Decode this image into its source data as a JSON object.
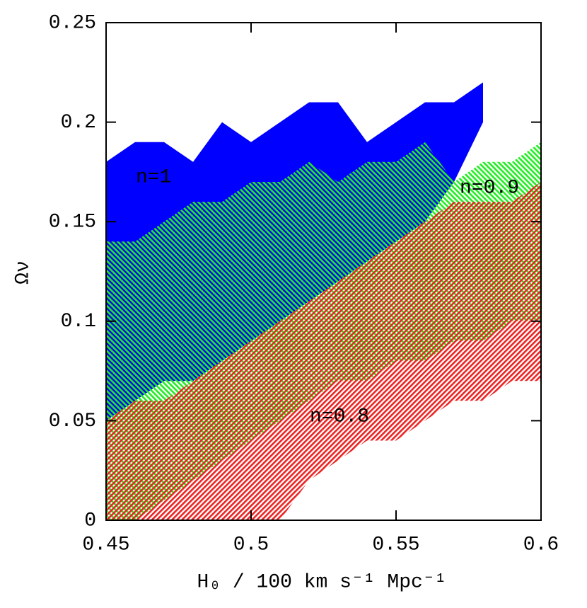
{
  "chart_data": {
    "type": "band",
    "xlabel": "H₀ / 100 km s⁻¹ Mpc⁻¹",
    "ylabel": "Ων",
    "xlim": [
      0.45,
      0.6
    ],
    "ylim": [
      0,
      0.25
    ],
    "xticks": [
      0.45,
      0.5,
      0.55,
      0.6
    ],
    "yticks": [
      0,
      0.05,
      0.1,
      0.15,
      0.2,
      0.25
    ],
    "series": [
      {
        "name": "n=1",
        "color": "#0000ff",
        "hatch": false,
        "x": [
          0.45,
          0.46,
          0.47,
          0.48,
          0.49,
          0.5,
          0.51,
          0.52,
          0.53,
          0.54,
          0.55,
          0.56,
          0.57,
          0.58
        ],
        "lower": [
          0.05,
          0.06,
          0.07,
          0.07,
          0.08,
          0.09,
          0.1,
          0.11,
          0.12,
          0.13,
          0.14,
          0.15,
          0.17,
          0.2
        ],
        "upper": [
          0.18,
          0.19,
          0.19,
          0.18,
          0.2,
          0.19,
          0.2,
          0.21,
          0.21,
          0.19,
          0.2,
          0.21,
          0.21,
          0.22
        ]
      },
      {
        "name": "n=0.9",
        "color": "#22ee22",
        "hatch": true,
        "x": [
          0.45,
          0.46,
          0.47,
          0.48,
          0.49,
          0.5,
          0.51,
          0.52,
          0.53,
          0.54,
          0.55,
          0.56,
          0.57,
          0.58,
          0.59,
          0.6
        ],
        "lower": [
          0,
          0,
          0.01,
          0.02,
          0.03,
          0.04,
          0.05,
          0.06,
          0.07,
          0.07,
          0.08,
          0.08,
          0.09,
          0.09,
          0.1,
          0.1
        ],
        "upper": [
          0.14,
          0.14,
          0.15,
          0.16,
          0.16,
          0.17,
          0.17,
          0.18,
          0.17,
          0.18,
          0.18,
          0.19,
          0.17,
          0.18,
          0.18,
          0.19
        ]
      },
      {
        "name": "n=0.8",
        "color": "#ee2222",
        "hatch": true,
        "x": [
          0.45,
          0.46,
          0.47,
          0.48,
          0.49,
          0.5,
          0.51,
          0.52,
          0.53,
          0.54,
          0.55,
          0.56,
          0.57,
          0.58,
          0.59,
          0.6
        ],
        "lower": [
          0,
          0,
          0,
          0,
          0,
          0,
          0,
          0.02,
          0.03,
          0.04,
          0.04,
          0.05,
          0.06,
          0.06,
          0.07,
          0.07
        ],
        "upper": [
          0.05,
          0.06,
          0.06,
          0.07,
          0.08,
          0.09,
          0.1,
          0.11,
          0.12,
          0.13,
          0.14,
          0.15,
          0.16,
          0.16,
          0.16,
          0.17
        ]
      }
    ]
  }
}
